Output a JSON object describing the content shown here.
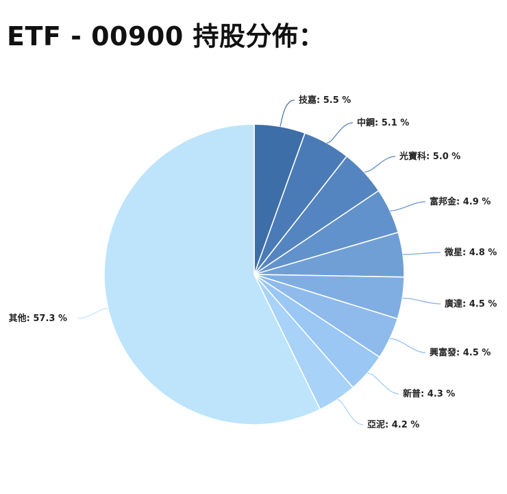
{
  "page": {
    "title": "ETF - 00900 持股分佈："
  },
  "chart_data": {
    "type": "pie",
    "title": "",
    "unit": "%",
    "slices": [
      {
        "label": "技嘉",
        "value": 5.5,
        "color": "#3d6ea7"
      },
      {
        "label": "中鋼",
        "value": 5.1,
        "color": "#4a7bb6"
      },
      {
        "label": "光寶科",
        "value": 5.0,
        "color": "#5585c0"
      },
      {
        "label": "富邦金",
        "value": 4.9,
        "color": "#6292cb"
      },
      {
        "label": "微星",
        "value": 4.8,
        "color": "#6f9fd5"
      },
      {
        "label": "廣達",
        "value": 4.5,
        "color": "#80aee2"
      },
      {
        "label": "興富發",
        "value": 4.5,
        "color": "#8ebbec"
      },
      {
        "label": "新普",
        "value": 4.3,
        "color": "#9ac7f3"
      },
      {
        "label": "亞泥",
        "value": 4.2,
        "color": "#a8d2f8"
      },
      {
        "label": "其他",
        "value": 57.3,
        "color": "#bde4fb"
      }
    ]
  }
}
